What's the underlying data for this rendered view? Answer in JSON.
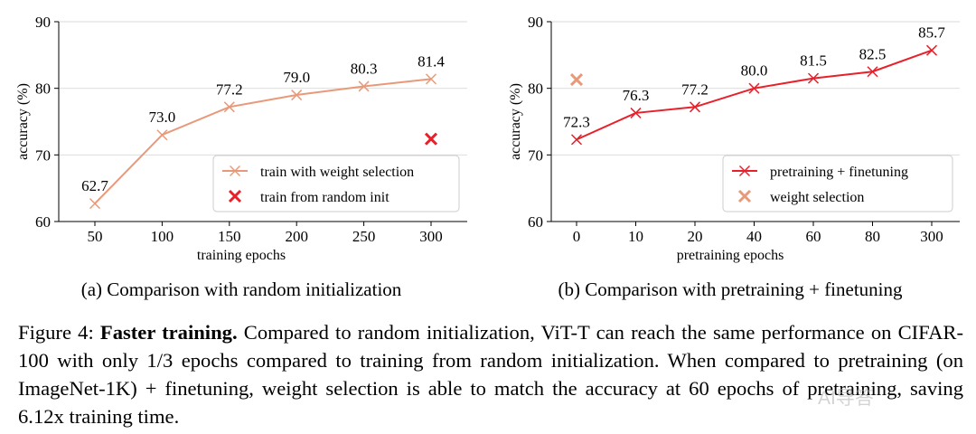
{
  "chart_data": [
    {
      "type": "line",
      "subcaption": "(a) Comparison with random initialization",
      "xlabel": "training epochs",
      "ylabel": "accuracy (%)",
      "categories": [
        "50",
        "100",
        "150",
        "200",
        "250",
        "300"
      ],
      "ylim": [
        60,
        90
      ],
      "yticks": [
        60,
        70,
        80,
        90
      ],
      "grid": "horizontal",
      "legend_position": "lower-right",
      "series": [
        {
          "name": "train with weight selection",
          "values": [
            62.7,
            73.0,
            77.2,
            79.0,
            80.3,
            81.4
          ],
          "labels": [
            "62.7",
            "73.0",
            "77.2",
            "79.0",
            "80.3",
            "81.4"
          ],
          "color": "#e8997a",
          "marker": "x",
          "line": true
        },
        {
          "name": "train from random init",
          "points": [
            {
              "x": "300",
              "y": 72.4
            }
          ],
          "color": "#e8202a",
          "marker": "x",
          "line": false
        }
      ]
    },
    {
      "type": "line",
      "subcaption": "(b) Comparison with pretraining + finetuning",
      "xlabel": "pretraining epochs",
      "ylabel": "accuracy (%)",
      "categories": [
        "0",
        "10",
        "20",
        "40",
        "60",
        "80",
        "300"
      ],
      "ylim": [
        60,
        90
      ],
      "yticks": [
        60,
        70,
        80,
        90
      ],
      "grid": "horizontal",
      "legend_position": "lower-right",
      "series": [
        {
          "name": "pretraining + finetuning",
          "values": [
            72.3,
            76.3,
            77.2,
            80.0,
            81.5,
            82.5,
            85.7
          ],
          "labels": [
            "72.3",
            "76.3",
            "77.2",
            "80.0",
            "81.5",
            "82.5",
            "85.7"
          ],
          "color": "#e8202a",
          "marker": "x",
          "line": true
        },
        {
          "name": "weight selection",
          "points": [
            {
              "x": "0",
              "y": 81.3
            }
          ],
          "color": "#e8997a",
          "marker": "x",
          "line": false
        }
      ]
    }
  ],
  "caption": {
    "prefix": "Figure 4: ",
    "bold": "Faster training.",
    "text": " Compared to random initialization, ViT-T can reach the same performance on CIFAR-100 with only 1/3 epochs compared to training from random initialization. When compared to pretraining (on ImageNet-1K) + finetuning, weight selection is able to match the accuracy at 60 epochs of pretraining, saving 6.12x training time."
  },
  "watermark": "AI导答"
}
